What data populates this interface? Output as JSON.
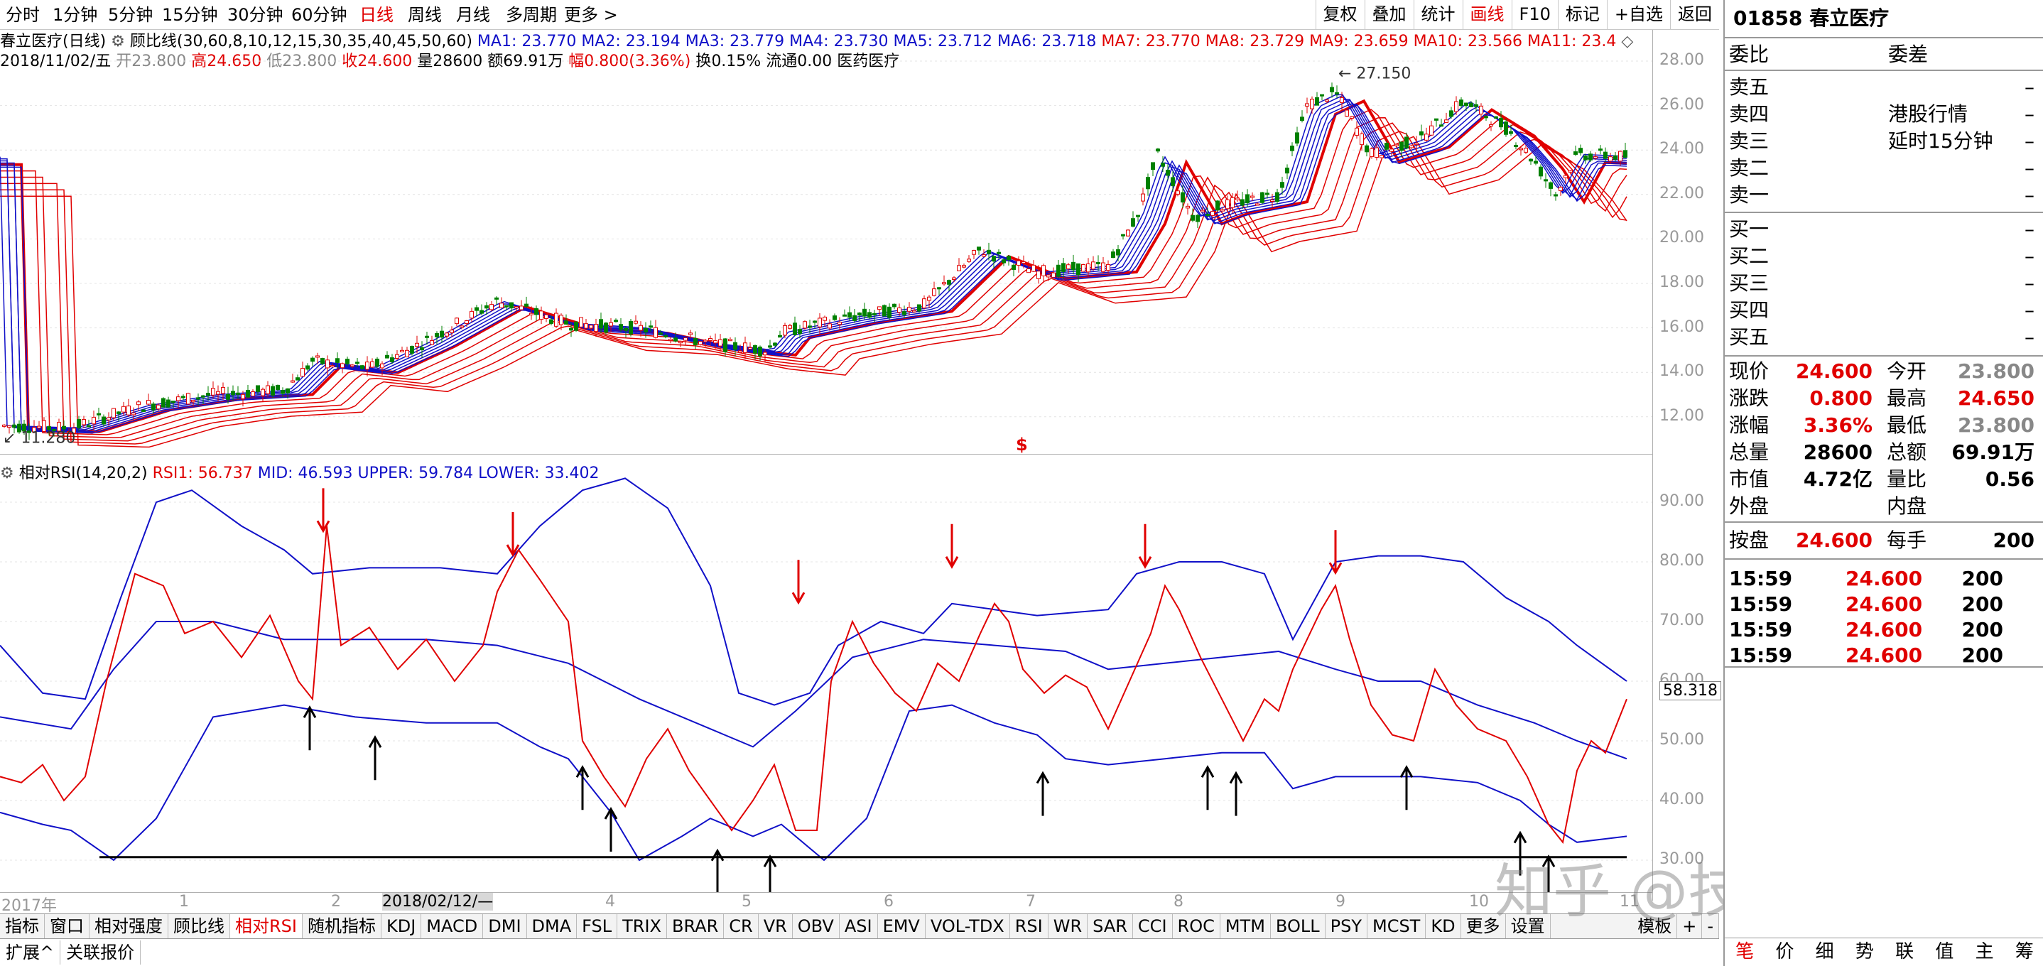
{
  "toolbar": {
    "periods": [
      "分时",
      "1分钟",
      "5分钟",
      "15分钟",
      "30分钟",
      "60分钟",
      "日线",
      "周线",
      "月线",
      "多周期",
      "更多 >"
    ],
    "active_period": "日线",
    "right_buttons": [
      "复权",
      "叠加",
      "统计",
      "画线",
      "F10",
      "标记",
      "+自选",
      "返回"
    ],
    "active_right": "画线"
  },
  "chart_info": {
    "stock_title": "春立医疗(日线)",
    "indicator_name": "顾比线(30,60,8,10,12,15,30,35,40,45,50,60)",
    "ma_values": [
      {
        "label": "MA1: 23.770",
        "color": "#1010c8"
      },
      {
        "label": "MA2: 23.194",
        "color": "#1010c8"
      },
      {
        "label": "MA3: 23.779",
        "color": "#1010c8"
      },
      {
        "label": "MA4: 23.730",
        "color": "#1010c8"
      },
      {
        "label": "MA5: 23.712",
        "color": "#1010c8"
      },
      {
        "label": "MA6: 23.718",
        "color": "#1010c8"
      },
      {
        "label": "MA7: 23.770",
        "color": "#e00000"
      },
      {
        "label": "MA8: 23.729",
        "color": "#e00000"
      },
      {
        "label": "MA9: 23.659",
        "color": "#e00000"
      },
      {
        "label": "MA10: 23.566",
        "color": "#e00000"
      },
      {
        "label": "MA11: 23.4",
        "color": "#e00000"
      }
    ],
    "date": "2018/11/02/五",
    "open_label": "开",
    "open": "23.800",
    "high_label": "高",
    "high": "24.650",
    "low_label": "低",
    "low": "23.800",
    "close_label": "收",
    "close": "24.600",
    "vol_label": "量",
    "vol": "28600",
    "amount_label": "额",
    "amount": "69.91万",
    "change_label": "幅",
    "change": "0.800(3.36%)",
    "turnover_label": "换",
    "turnover": "0.15%",
    "float_label": "流通",
    "float": "0.00",
    "sector": "医药医疗"
  },
  "price_axis": [
    "28.00",
    "26.00",
    "24.00",
    "22.00",
    "20.00",
    "18.00",
    "16.00",
    "14.00",
    "12.00"
  ],
  "price_annotations": {
    "high": "27.150",
    "low": "11.280",
    "marker": "$"
  },
  "rsi": {
    "name": "相对RSI(14,20,2)",
    "rsi1": "RSI1: 56.737",
    "mid": "MID: 46.593",
    "upper": "UPPER: 59.784",
    "lower": "LOWER: 33.402",
    "axis": [
      "90.00",
      "80.00",
      "70.00",
      "60.00",
      "50.00",
      "40.00",
      "30.00"
    ],
    "current": "58.318"
  },
  "x_labels": [
    {
      "t": "2017年"
    },
    {
      "t": "1"
    },
    {
      "t": "2"
    },
    {
      "t": "2018/02/12/—"
    },
    {
      "t": "4"
    },
    {
      "t": "5"
    },
    {
      "t": "6"
    },
    {
      "t": "7"
    },
    {
      "t": "8"
    },
    {
      "t": "9"
    },
    {
      "t": "10"
    },
    {
      "t": "11"
    }
  ],
  "bottom_tabs": [
    "指标",
    "窗口",
    "相对强度",
    "顾比线",
    "相对RSI",
    "随机指标",
    "KDJ",
    "MACD",
    "DMI",
    "DMA",
    "FSL",
    "TRIX",
    "BRAR",
    "CR",
    "VR",
    "OBV",
    "ASI",
    "EMV",
    "VOL-TDX",
    "RSI",
    "WR",
    "SAR",
    "CCI",
    "ROC",
    "MTM",
    "BOLL",
    "PSY",
    "MCST",
    "KD",
    "更多",
    "设置"
  ],
  "active_bottom_tab": "相对RSI",
  "bottom_right": [
    "模板",
    "+",
    "-"
  ],
  "bottom_bar2": [
    "扩展^",
    "关联报价"
  ],
  "watermark": "知乎 @技术投机客",
  "panel": {
    "code": "01858",
    "name": "春立医疗",
    "weibi_label": "委比",
    "weicha_label": "委差",
    "sell_labels": [
      "卖五",
      "卖四",
      "卖三",
      "卖二",
      "卖一"
    ],
    "buy_labels": [
      "买一",
      "买二",
      "买三",
      "买四",
      "买五"
    ],
    "dash": "–",
    "note1": "港股行情",
    "note2": "延时15分钟",
    "stats": [
      {
        "l1": "现价",
        "v1": "24.600",
        "c1": "#e00000",
        "l2": "今开",
        "v2": "23.800",
        "c2": "#888888"
      },
      {
        "l1": "涨跌",
        "v1": "0.800",
        "c1": "#e00000",
        "l2": "最高",
        "v2": "24.650",
        "c2": "#e00000"
      },
      {
        "l1": "涨幅",
        "v1": "3.36%",
        "c1": "#e00000",
        "l2": "最低",
        "v2": "23.800",
        "c2": "#888888"
      },
      {
        "l1": "总量",
        "v1": "28600",
        "c1": "#000000",
        "l2": "总额",
        "v2": "69.91万",
        "c2": "#000000"
      },
      {
        "l1": "市值",
        "v1": "4.72亿",
        "c1": "#000000",
        "l2": "量比",
        "v2": "0.56",
        "c2": "#000000"
      },
      {
        "l1": "外盘",
        "v1": "",
        "c1": "#000000",
        "l2": "内盘",
        "v2": "",
        "c2": "#000000"
      }
    ],
    "closing": {
      "l1": "按盘",
      "v1": "24.600",
      "l2": "每手",
      "v2": "200"
    },
    "ticks": [
      {
        "time": "15:59",
        "price": "24.600",
        "vol": "200"
      },
      {
        "time": "15:59",
        "price": "24.600",
        "vol": "200"
      },
      {
        "time": "15:59",
        "price": "24.600",
        "vol": "200"
      },
      {
        "time": "15:59",
        "price": "24.600",
        "vol": "200"
      }
    ],
    "tabs": [
      "笔",
      "价",
      "细",
      "势",
      "联",
      "值",
      "主",
      "筹"
    ],
    "active_tab": "笔"
  },
  "colors": {
    "up": "#e00000",
    "down": "#008000",
    "blue": "#1010c8",
    "red": "#e00000"
  }
}
